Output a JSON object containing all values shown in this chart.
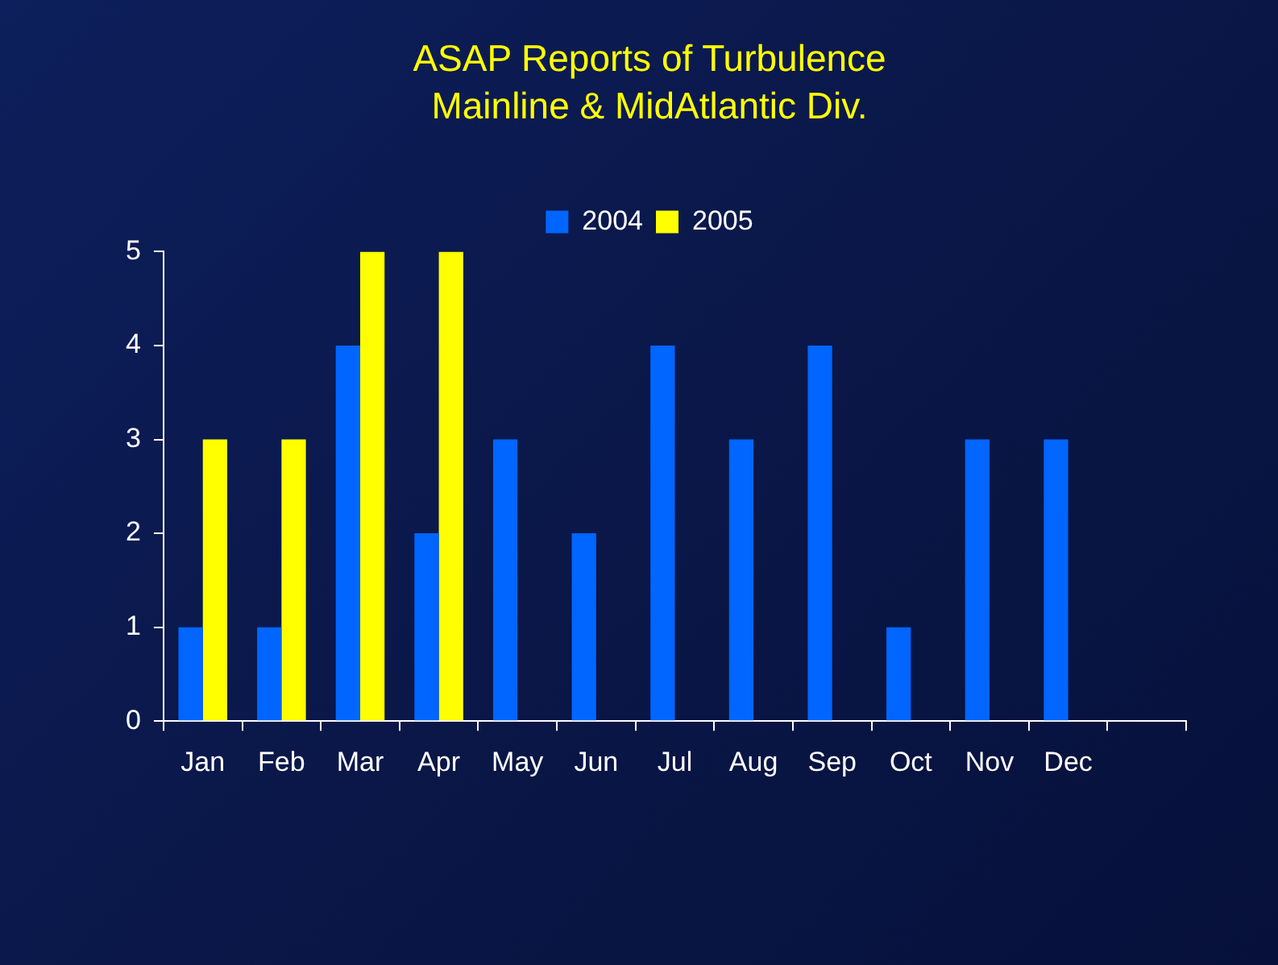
{
  "chart_data": {
    "type": "bar",
    "title": "ASAP Reports of Turbulence",
    "subtitle": "Mainline & MidAtlantic Div.",
    "categories": [
      "Jan",
      "Feb",
      "Mar",
      "Apr",
      "May",
      "Jun",
      "Jul",
      "Aug",
      "Sep",
      "Oct",
      "Nov",
      "Dec",
      null
    ],
    "series": [
      {
        "name": "2004",
        "color": "#0066ff",
        "values": [
          1,
          1,
          4,
          2,
          3,
          2,
          4,
          3,
          4,
          1,
          3,
          3,
          null
        ]
      },
      {
        "name": "2005",
        "color": "#ffff00",
        "values": [
          3,
          3,
          5,
          5,
          null,
          null,
          null,
          null,
          null,
          null,
          null,
          null,
          null
        ]
      }
    ],
    "ylim": [
      0,
      5
    ],
    "yticks": [
      0,
      1,
      2,
      3,
      4,
      5
    ],
    "grid": false,
    "legend": "top"
  }
}
